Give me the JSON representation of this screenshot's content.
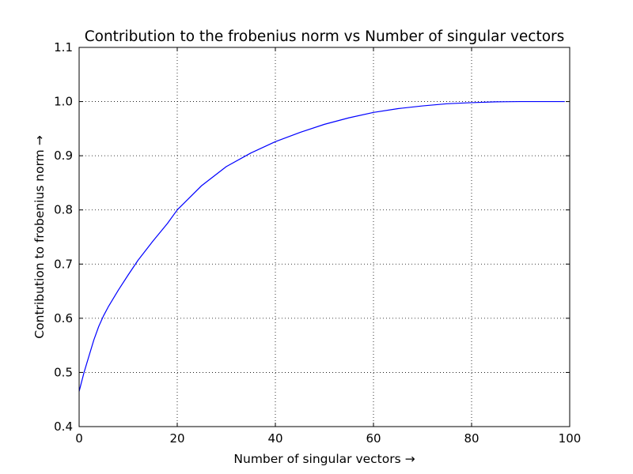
{
  "chart_data": {
    "type": "line",
    "title": "Contribution to the frobenius norm vs Number of singular vectors",
    "xlabel": "Number of singular vectors →",
    "ylabel": "Contribution to frobenius norm →",
    "xlim": [
      0,
      100
    ],
    "ylim": [
      0.4,
      1.1
    ],
    "xticks": [
      "0",
      "20",
      "40",
      "60",
      "80",
      "100"
    ],
    "yticks": [
      "0.4",
      "0.5",
      "0.6",
      "0.7",
      "0.8",
      "0.9",
      "1.0",
      "1.1"
    ],
    "grid": true,
    "series": [
      {
        "color": "#0000ff",
        "x": [
          0,
          1,
          2,
          3,
          4,
          5,
          6,
          8,
          10,
          12,
          15,
          18,
          20,
          25,
          30,
          35,
          40,
          45,
          50,
          55,
          60,
          65,
          70,
          75,
          80,
          85,
          90,
          95,
          99
        ],
        "y": [
          0.465,
          0.5,
          0.53,
          0.56,
          0.585,
          0.605,
          0.622,
          0.652,
          0.68,
          0.707,
          0.742,
          0.775,
          0.8,
          0.845,
          0.88,
          0.905,
          0.926,
          0.943,
          0.958,
          0.97,
          0.98,
          0.987,
          0.992,
          0.996,
          0.998,
          0.9995,
          1.0,
          1.0,
          1.0
        ]
      }
    ]
  }
}
